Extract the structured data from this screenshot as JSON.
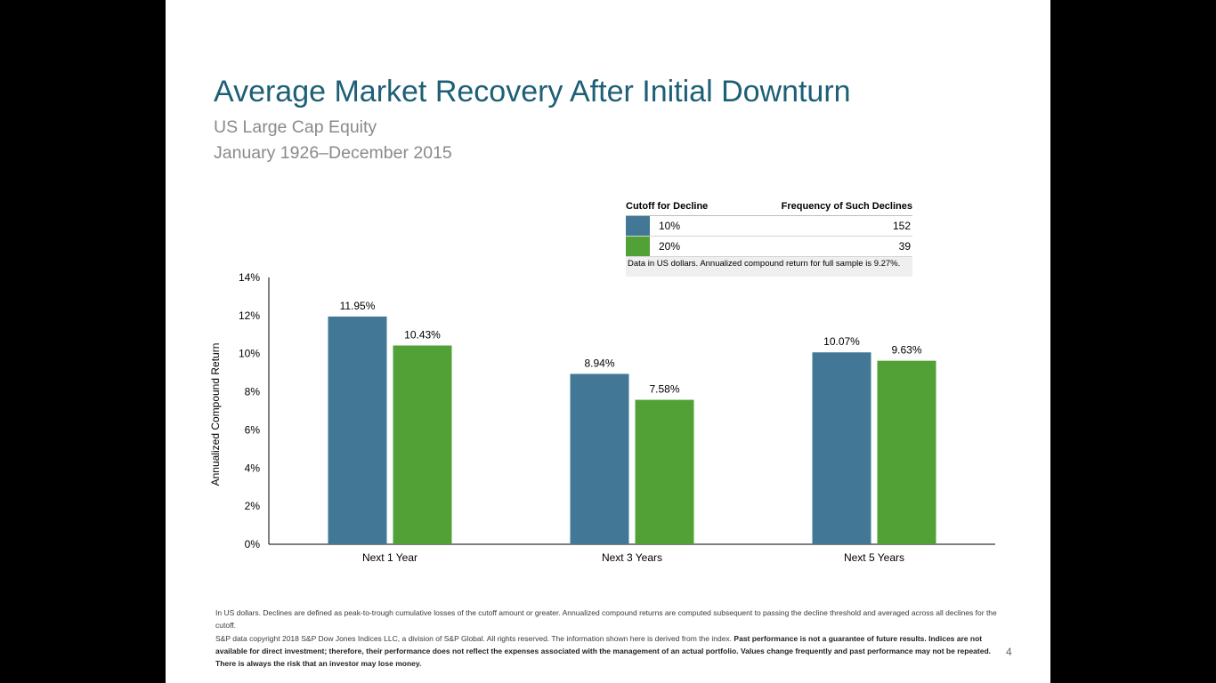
{
  "slide": {
    "title": "Average Market Recovery After Initial Downturn",
    "subtitle1": "US Large Cap Equity",
    "subtitle2": "January 1926–December 2015",
    "page_number": "4"
  },
  "legend": {
    "col1_header": "Cutoff for Decline",
    "col2_header": "Frequency of Such Declines",
    "rows": [
      {
        "label": "10%",
        "count": "152",
        "color": "#427896"
      },
      {
        "label": "20%",
        "count": "39",
        "color": "#52a136"
      }
    ],
    "note": "Data in US dollars. Annualized compound return for full sample is 9.27%."
  },
  "chart_data": {
    "type": "bar",
    "categories": [
      "Next 1 Year",
      "Next 3 Years",
      "Next 5 Years"
    ],
    "series": [
      {
        "name": "10%",
        "values": [
          11.95,
          8.94,
          10.07
        ],
        "labels": [
          "11.95%",
          "8.94%",
          "10.07%"
        ],
        "color": "#427896"
      },
      {
        "name": "20%",
        "values": [
          10.43,
          7.58,
          9.63
        ],
        "labels": [
          "10.43%",
          "7.58%",
          "9.63%"
        ],
        "color": "#52a136"
      }
    ],
    "ylabel": "Annualized Compound Return",
    "ylim": [
      0,
      14
    ],
    "yticks": [
      0,
      2,
      4,
      6,
      8,
      10,
      12,
      14
    ],
    "ytick_labels": [
      "0%",
      "2%",
      "4%",
      "6%",
      "8%",
      "10%",
      "12%",
      "14%"
    ],
    "grid": false,
    "legend_position": "top-right"
  },
  "footnote": {
    "line1": "In US dollars. Declines are defined as peak-to-trough cumulative losses of the cutoff amount or greater. Annualized compound returns are computed subsequent to passing the decline threshold and averaged across all declines for the cutoff.",
    "line2_plain": "S&P data copyright 2018 S&P Dow Jones Indices LLC, a division of S&P Global. All rights reserved. The information shown here is derived from the index.",
    "line2_bold": "Past performance is not a guarantee of future results. Indices are not available for direct investment; therefore, their performance does not reflect the expenses associated with the management of an actual portfolio. Values change frequently and past performance may not be repeated. There is always the risk that an investor may lose money."
  }
}
